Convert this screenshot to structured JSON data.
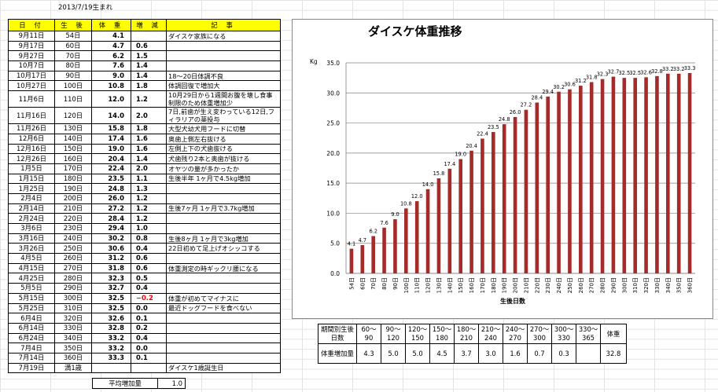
{
  "birth_note": "2013/7/19生まれ",
  "log": {
    "headers": [
      "日 付",
      "生 後",
      "体 重",
      "増 減",
      "記 事"
    ],
    "rows": [
      {
        "date": "9月11日",
        "age": "54日",
        "weight": "4.1",
        "inc": "",
        "note": "ダイスケ家族になる"
      },
      {
        "date": "9月17日",
        "age": "60日",
        "weight": "4.7",
        "inc": "0.6",
        "note": ""
      },
      {
        "date": "9月27日",
        "age": "70日",
        "weight": "6.2",
        "inc": "1.5",
        "note": ""
      },
      {
        "date": "10月7日",
        "age": "80日",
        "weight": "7.6",
        "inc": "1.4",
        "note": ""
      },
      {
        "date": "10月17日",
        "age": "90日",
        "weight": "9.0",
        "inc": "1.4",
        "note": "18～20日体調不良"
      },
      {
        "date": "10月27日",
        "age": "100日",
        "weight": "10.8",
        "inc": "1.8",
        "note": "体調回復で増加大"
      },
      {
        "date": "11月6日",
        "age": "110日",
        "weight": "12.0",
        "inc": "1.2",
        "note": "10月29日から1週間お腹を壊し食事制限のため体重増加少",
        "tall": true
      },
      {
        "date": "11月16日",
        "age": "120日",
        "weight": "14.0",
        "inc": "2.0",
        "note": "7日,前歯が生え変わっている12日,フィラリアの薬投与",
        "tall": true
      },
      {
        "date": "11月26日",
        "age": "130日",
        "weight": "15.8",
        "inc": "1.8",
        "note": "大型犬幼犬用フードに切替"
      },
      {
        "date": "12月6日",
        "age": "140日",
        "weight": "17.4",
        "inc": "1.6",
        "note": "奥歯上側左右抜ける"
      },
      {
        "date": "12月16日",
        "age": "150日",
        "weight": "19.0",
        "inc": "1.6",
        "note": "左側上下の犬歯抜ける"
      },
      {
        "date": "12月26日",
        "age": "160日",
        "weight": "20.4",
        "inc": "1.4",
        "note": "犬歯残り2本と奥歯が抜ける"
      },
      {
        "date": "1月5日",
        "age": "170日",
        "weight": "22.4",
        "inc": "2.0",
        "note": "オヤツの量が多かったか"
      },
      {
        "date": "1月15日",
        "age": "180日",
        "weight": "23.5",
        "inc": "1.1",
        "note": "生後半年 1ヶ月で4.5kg増加"
      },
      {
        "date": "1月25日",
        "age": "190日",
        "weight": "24.8",
        "inc": "1.3",
        "note": ""
      },
      {
        "date": "2月4日",
        "age": "200日",
        "weight": "26.0",
        "inc": "1.2",
        "note": ""
      },
      {
        "date": "2月14日",
        "age": "210日",
        "weight": "27.2",
        "inc": "1.2",
        "note": "生後7ヶ月 1ヶ月で3.7kg増加"
      },
      {
        "date": "2月24日",
        "age": "220日",
        "weight": "28.4",
        "inc": "1.2",
        "note": ""
      },
      {
        "date": "3月6日",
        "age": "230日",
        "weight": "29.4",
        "inc": "1.0",
        "note": ""
      },
      {
        "date": "3月16日",
        "age": "240日",
        "weight": "30.2",
        "inc": "0.8",
        "note": "生後8ヶ月 1ヶ月で3kg増加"
      },
      {
        "date": "3月26日",
        "age": "250日",
        "weight": "30.6",
        "inc": "0.4",
        "note": "22日初めて足上げオシッコする"
      },
      {
        "date": "4月5日",
        "age": "260日",
        "weight": "31.2",
        "inc": "0.6",
        "note": ""
      },
      {
        "date": "4月15日",
        "age": "270日",
        "weight": "31.8",
        "inc": "0.6",
        "note": "体重測定の時ギックリ腰になる"
      },
      {
        "date": "4月25日",
        "age": "280日",
        "weight": "32.3",
        "inc": "0.5",
        "note": ""
      },
      {
        "date": "5月5日",
        "age": "290日",
        "weight": "32.7",
        "inc": "0.4",
        "note": ""
      },
      {
        "date": "5月15日",
        "age": "300日",
        "weight": "32.5",
        "inc": "−0.2",
        "note": "体重が初めてマイナスに",
        "neg": true
      },
      {
        "date": "5月25日",
        "age": "310日",
        "weight": "32.5",
        "inc": "0.0",
        "note": "最近ドッグフードを食べない"
      },
      {
        "date": "6月4日",
        "age": "320日",
        "weight": "32.6",
        "inc": "0.1",
        "note": ""
      },
      {
        "date": "6月14日",
        "age": "330日",
        "weight": "32.8",
        "inc": "0.2",
        "note": ""
      },
      {
        "date": "6月24日",
        "age": "340日",
        "weight": "33.2",
        "inc": "0.4",
        "note": ""
      },
      {
        "date": "7月4日",
        "age": "350日",
        "weight": "33.2",
        "inc": "0.0",
        "note": ""
      },
      {
        "date": "7月14日",
        "age": "360日",
        "weight": "33.3",
        "inc": "0.1",
        "note": ""
      },
      {
        "date": "7月19日",
        "age": "満1歳",
        "weight": "",
        "inc": "",
        "note": "ダイスケ1歳誕生日"
      }
    ],
    "avg_label": "平均増加量",
    "avg_value": "1.0"
  },
  "chart_data": {
    "type": "bar",
    "title": "ダイスケ体重推移",
    "ylabel": "Kg",
    "xlabel": "生後日数",
    "ylim": [
      0,
      35
    ],
    "yticks": [
      "0.0",
      "5.0",
      "10.0",
      "15.0",
      "20.0",
      "25.0",
      "30.0",
      "35.0"
    ],
    "categories": [
      "54日",
      "60日",
      "70日",
      "80日",
      "90日",
      "100日",
      "110日",
      "120日",
      "130日",
      "140日",
      "150日",
      "160日",
      "170日",
      "180日",
      "190日",
      "200日",
      "210日",
      "220日",
      "230日",
      "240日",
      "250日",
      "260日",
      "270日",
      "280日",
      "290日",
      "300日",
      "310日",
      "320日",
      "330日",
      "340日",
      "350日",
      "360日"
    ],
    "values": [
      4.1,
      4.7,
      6.2,
      7.6,
      9.0,
      10.8,
      12.0,
      14.0,
      15.8,
      17.4,
      19.0,
      20.4,
      22.4,
      23.5,
      24.8,
      26.0,
      27.2,
      28.4,
      29.4,
      30.2,
      30.6,
      31.2,
      31.8,
      32.3,
      32.7,
      32.5,
      32.5,
      32.6,
      32.8,
      33.2,
      33.2,
      33.3
    ],
    "data_labels": [
      "4.1",
      "4.7",
      "6.2",
      "7.6",
      "9.0",
      "10.8",
      "12.0",
      "14.0",
      "15.8",
      "17.4",
      "19.0",
      "20.4",
      "22.4",
      "23.5",
      "24.8",
      "26.0",
      "27.2",
      "28.4",
      "29.4",
      "30.2",
      "30.6",
      "31.2",
      "31.8",
      "32.3",
      "32.7",
      "32.5",
      "32.5",
      "32.6",
      "32.8",
      "33.2",
      "33.2",
      "33.3"
    ],
    "grid": true,
    "bar_color": "#a52a2a"
  },
  "period_table": {
    "row1_label": "期間別生後日数",
    "row2_label": "体重増加量",
    "periods": [
      "60～90",
      "90～120",
      "120～150",
      "150～180",
      "180～210",
      "210～240",
      "240～270",
      "270～300",
      "300～330",
      "330～365"
    ],
    "gains": [
      "4.3",
      "5.0",
      "5.0",
      "4.5",
      "3.7",
      "3.0",
      "1.6",
      "0.7",
      "0.3",
      ""
    ],
    "weight_label": "体重",
    "weight_value": "32.8"
  }
}
